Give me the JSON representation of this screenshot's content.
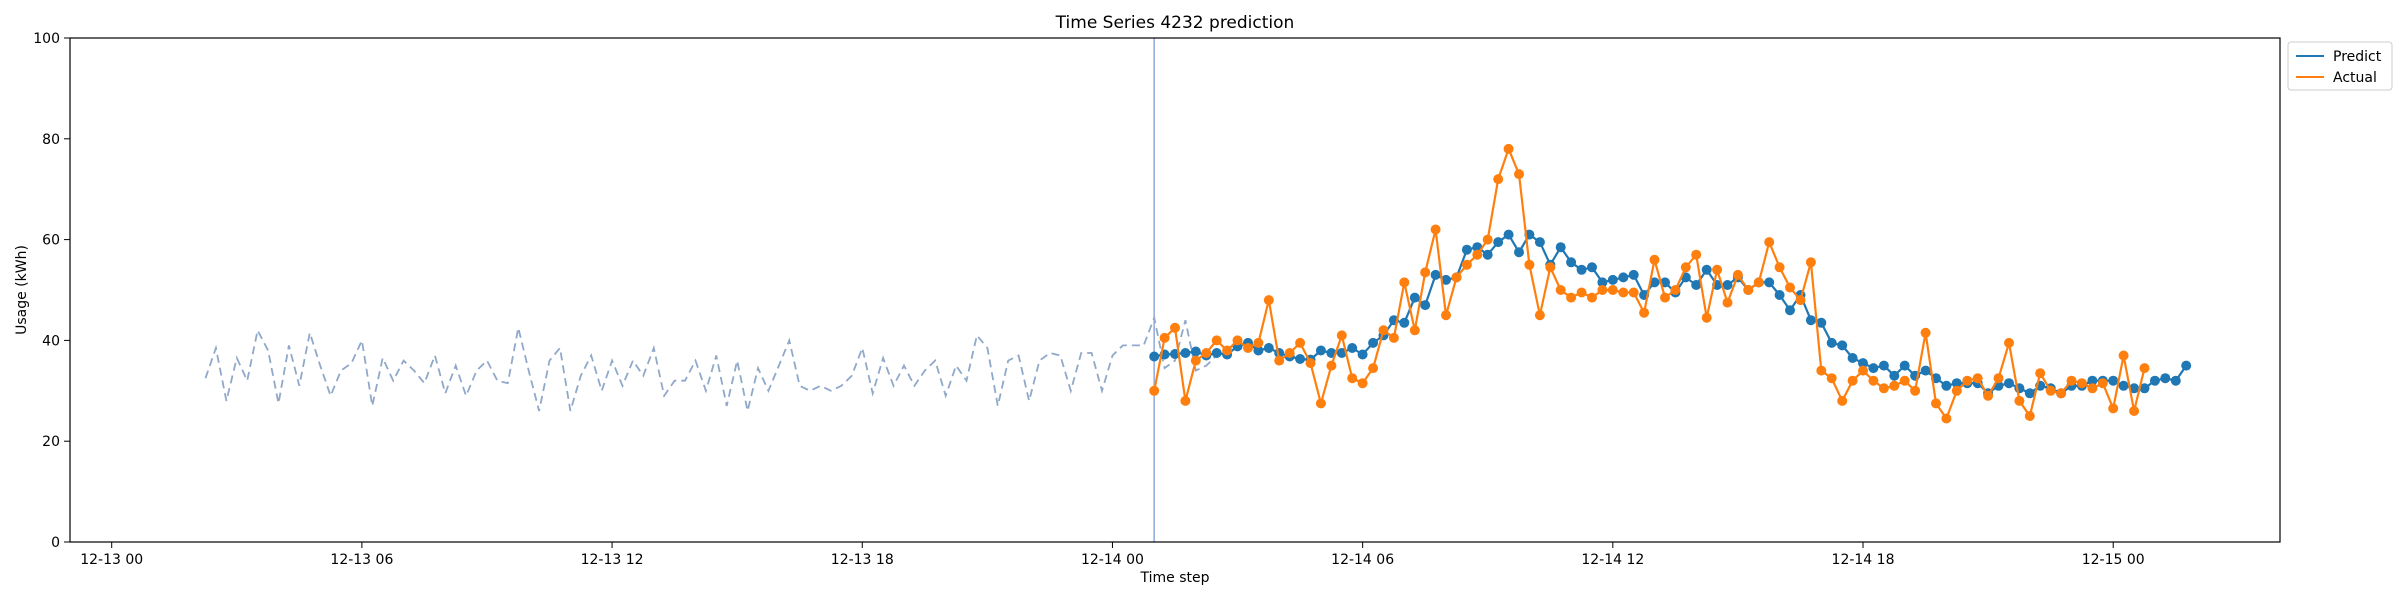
{
  "chart_data": {
    "type": "line",
    "title": "Time Series 4232 prediction",
    "xlabel": "Time step",
    "ylabel": "Usage (kWh)",
    "ylim": [
      0,
      100
    ],
    "y_ticks": [
      0,
      20,
      40,
      60,
      80,
      100
    ],
    "x_domain": [
      "2024-12-12T23:00",
      "2024-12-15T04:00"
    ],
    "x_ticks": [
      {
        "t": "2024-12-13T00:00",
        "label": "12-13 00"
      },
      {
        "t": "2024-12-13T06:00",
        "label": "12-13 06"
      },
      {
        "t": "2024-12-13T12:00",
        "label": "12-13 12"
      },
      {
        "t": "2024-12-13T18:00",
        "label": "12-13 18"
      },
      {
        "t": "2024-12-14T00:00",
        "label": "12-14 00"
      },
      {
        "t": "2024-12-14T06:00",
        "label": "12-14 06"
      },
      {
        "t": "2024-12-14T12:00",
        "label": "12-14 12"
      },
      {
        "t": "2024-12-14T18:00",
        "label": "12-14 18"
      },
      {
        "t": "2024-12-15T00:00",
        "label": "12-15 00"
      }
    ],
    "forecast_start": "2024-12-14T01:00",
    "legend": {
      "position": "top-right outside"
    },
    "series": [
      {
        "key": "history",
        "style": "dashed",
        "color": "#90a8c9",
        "start": "2024-12-13T02:15",
        "step_minutes": 15,
        "values": [
          32.5,
          38.5,
          28,
          36.5,
          32,
          42,
          38,
          27.5,
          39,
          31,
          41.5,
          35,
          29,
          34,
          35.5,
          40,
          27,
          36.5,
          32,
          36,
          34,
          31.5,
          37,
          29.5,
          35,
          29,
          34,
          36,
          32,
          31.5,
          42.5,
          34,
          26,
          36,
          38.5,
          26,
          33,
          37,
          30,
          36,
          31,
          36,
          33,
          38.5,
          29,
          32,
          32,
          36,
          30,
          37,
          27,
          36,
          26,
          34.5,
          30,
          35,
          40,
          31,
          30,
          31,
          30,
          31,
          33,
          38.5,
          29.5,
          36.5,
          31,
          35,
          31,
          34,
          36,
          29,
          35,
          32,
          41,
          38.5,
          27,
          36,
          37,
          28,
          36,
          37.5,
          37,
          30,
          37.5,
          37.5,
          30,
          37,
          39,
          39,
          39,
          44.5,
          34.5,
          36,
          44,
          34,
          35,
          37
        ]
      },
      {
        "key": "predict",
        "name": "Predict",
        "color": "#1f77b4",
        "start": "2024-12-14T01:00",
        "step_minutes": 15,
        "values": [
          36.8,
          37.2,
          37.3,
          37.5,
          37.8,
          37.0,
          37.5,
          37.2,
          38.8,
          39.5,
          38.0,
          38.5,
          37.5,
          36.8,
          36.3,
          36.2,
          38.0,
          37.5,
          37.5,
          38.5,
          37.2,
          39.5,
          41.0,
          44.0,
          43.5,
          48.5,
          47.0,
          53.0,
          52.0,
          52.5,
          58.0,
          58.5,
          57.0,
          59.5,
          61.0,
          57.5,
          61.0,
          59.5,
          55.0,
          58.5,
          55.5,
          54.0,
          54.5,
          51.5,
          52.0,
          52.5,
          53.0,
          49.0,
          51.5,
          51.5,
          49.5,
          52.5,
          51.0,
          54.0,
          51.0,
          51.0,
          52.5,
          50.0,
          51.5,
          51.5,
          49.0,
          46.0,
          49.0,
          44.0,
          43.5,
          39.5,
          39.0,
          36.5,
          35.5,
          34.5,
          35.0,
          33.0,
          35.0,
          33.0,
          34.0,
          32.5,
          31.0,
          31.5,
          31.5,
          31.5,
          29.5,
          31.0,
          31.5,
          30.5,
          29.5,
          31.0,
          30.5,
          29.5,
          31.0,
          31.0,
          32.0,
          32.0,
          32.0,
          31.0,
          30.5,
          30.5,
          32.0,
          32.5,
          32.0,
          35.0
        ]
      },
      {
        "key": "actual",
        "name": "Actual",
        "color": "#ff7f0e",
        "start": "2024-12-14T01:00",
        "step_minutes": 15,
        "values": [
          30.0,
          40.5,
          42.5,
          28.0,
          36.0,
          37.5,
          40.0,
          38.0,
          40.0,
          38.5,
          39.5,
          48.0,
          36.0,
          37.5,
          39.5,
          35.5,
          27.5,
          35.0,
          41.0,
          32.5,
          31.5,
          34.5,
          42.0,
          40.5,
          51.5,
          42.0,
          53.5,
          62.0,
          45.0,
          52.5,
          55.0,
          57.0,
          60.0,
          72.0,
          78.0,
          73.0,
          55.0,
          45.0,
          54.5,
          50.0,
          48.5,
          49.5,
          48.5,
          50.0,
          50.0,
          49.5,
          49.5,
          45.5,
          56.0,
          48.5,
          50.0,
          54.5,
          57.0,
          44.5,
          54.0,
          47.5,
          53.0,
          50.0,
          51.5,
          59.5,
          54.5,
          50.5,
          48.0,
          55.5,
          34.0,
          32.5,
          28.0,
          32.0,
          34.0,
          32.0,
          30.5,
          31.0,
          32.0,
          30.0,
          41.5,
          27.5,
          24.5,
          30.0,
          32.0,
          32.5,
          29.0,
          32.5,
          39.5,
          28.0,
          25.0,
          33.5,
          30.0,
          29.5,
          32.0,
          31.5,
          30.5,
          31.5,
          26.5,
          37.0,
          26.0,
          34.5
        ]
      }
    ]
  }
}
